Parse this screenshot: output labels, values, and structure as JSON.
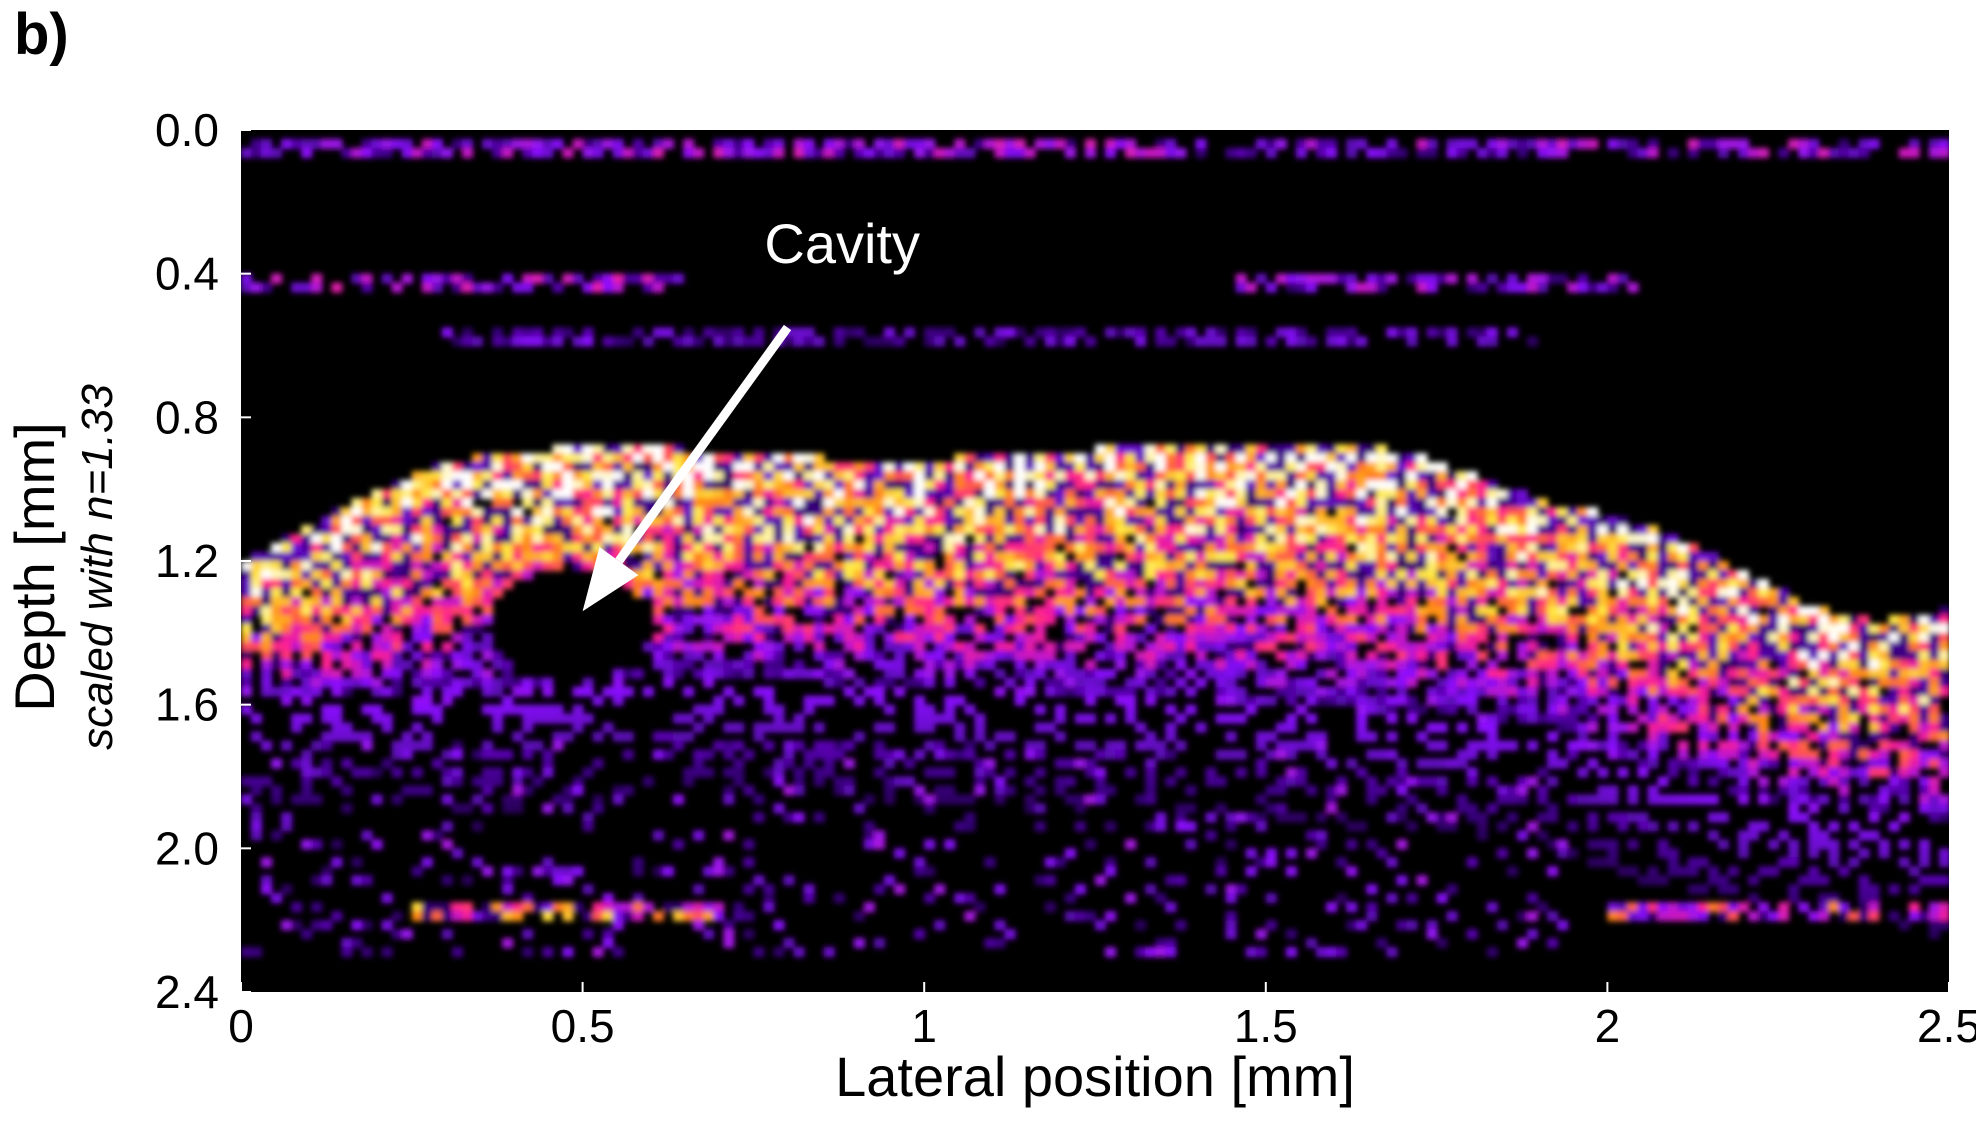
{
  "panel_label": "b)",
  "chart_data": {
    "type": "heatmap",
    "title": "",
    "xlabel": "Lateral position [mm]",
    "ylabel": "Depth [mm]",
    "ylabel_secondary": "scaled with n=1.33",
    "x_ticks": [
      {
        "value": 0,
        "label": "0"
      },
      {
        "value": 0.5,
        "label": "0.5"
      },
      {
        "value": 1,
        "label": "1"
      },
      {
        "value": 1.5,
        "label": "1.5"
      },
      {
        "value": 2,
        "label": "2"
      },
      {
        "value": 2.5,
        "label": "2.5"
      }
    ],
    "y_ticks": [
      {
        "value": 0.0,
        "label": "0.0"
      },
      {
        "value": 0.4,
        "label": "0.4"
      },
      {
        "value": 0.8,
        "label": "0.8"
      },
      {
        "value": 1.2,
        "label": "1.2"
      },
      {
        "value": 1.6,
        "label": "1.6"
      },
      {
        "value": 2.0,
        "label": "2.0"
      },
      {
        "value": 2.4,
        "label": "2.4"
      }
    ],
    "xlim": [
      0,
      2.5
    ],
    "ylim": [
      0,
      2.4
    ],
    "y_inverted": true,
    "colormap": [
      "#000000",
      "#3a0080",
      "#8a10ff",
      "#ff2090",
      "#ff8a10",
      "#ffe840",
      "#ffffff"
    ],
    "tissue_upper_boundary": {
      "x": [
        0.0,
        0.1,
        0.2,
        0.3,
        0.5,
        0.7,
        0.9,
        1.1,
        1.3,
        1.5,
        1.7,
        1.8,
        1.9,
        2.0,
        2.1,
        2.2,
        2.3,
        2.4,
        2.5
      ],
      "depth": [
        1.2,
        1.1,
        1.0,
        0.92,
        0.88,
        0.89,
        0.92,
        0.91,
        0.88,
        0.87,
        0.89,
        0.96,
        1.03,
        1.07,
        1.13,
        1.23,
        1.33,
        1.37,
        1.33
      ]
    },
    "tissue_lower_boundary": {
      "x": [
        0.0,
        0.3,
        0.6,
        1.0,
        1.4,
        1.7,
        1.9,
        2.0,
        2.1,
        2.2,
        2.3,
        2.4,
        2.5
      ],
      "depth": [
        1.58,
        1.58,
        1.52,
        1.55,
        1.58,
        1.62,
        1.65,
        1.73,
        1.8,
        1.85,
        1.88,
        1.9,
        1.92
      ]
    },
    "bright_streaks": [
      {
        "depth": 0.05,
        "x_range": [
          0.0,
          2.5
        ],
        "intensity": 0.3
      },
      {
        "depth": 0.43,
        "x_range": [
          0.0,
          0.65
        ],
        "intensity": 0.32
      },
      {
        "depth": 0.43,
        "x_range": [
          1.45,
          2.05
        ],
        "intensity": 0.28
      },
      {
        "depth": 0.58,
        "x_range": [
          0.3,
          1.9
        ],
        "intensity": 0.22
      },
      {
        "depth": 2.17,
        "x_range": [
          0.25,
          0.7
        ],
        "intensity": 0.55
      },
      {
        "depth": 2.17,
        "x_range": [
          2.0,
          2.5
        ],
        "intensity": 0.45
      }
    ],
    "cavity": {
      "x": 0.48,
      "depth": 1.38,
      "rx": 0.12,
      "ry": 0.16
    },
    "annotations": [
      {
        "text": "Cavity",
        "text_x": 0.88,
        "text_depth": 0.37,
        "arrow_from": [
          0.8,
          0.55
        ],
        "arrow_to": [
          0.5,
          1.34
        ]
      }
    ]
  }
}
